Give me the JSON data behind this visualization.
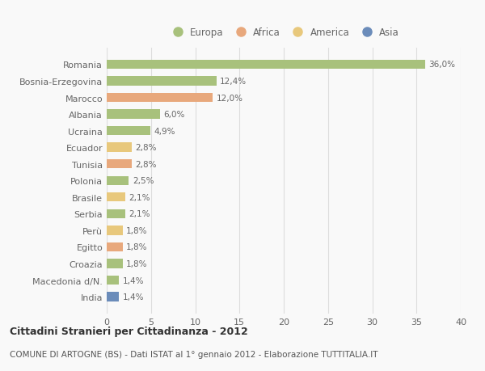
{
  "countries": [
    "Romania",
    "Bosnia-Erzegovina",
    "Marocco",
    "Albania",
    "Ucraina",
    "Ecuador",
    "Tunisia",
    "Polonia",
    "Brasile",
    "Serbia",
    "Perù",
    "Egitto",
    "Croazia",
    "Macedonia d/N.",
    "India"
  ],
  "values": [
    36.0,
    12.4,
    12.0,
    6.0,
    4.9,
    2.8,
    2.8,
    2.5,
    2.1,
    2.1,
    1.8,
    1.8,
    1.8,
    1.4,
    1.4
  ],
  "labels": [
    "36,0%",
    "12,4%",
    "12,0%",
    "6,0%",
    "4,9%",
    "2,8%",
    "2,8%",
    "2,5%",
    "2,1%",
    "2,1%",
    "1,8%",
    "1,8%",
    "1,8%",
    "1,4%",
    "1,4%"
  ],
  "continents": [
    "Europa",
    "Europa",
    "Africa",
    "Europa",
    "Europa",
    "America",
    "Africa",
    "Europa",
    "America",
    "Europa",
    "America",
    "Africa",
    "Europa",
    "Europa",
    "Asia"
  ],
  "colors": {
    "Europa": "#a8c17c",
    "Africa": "#e8a87c",
    "America": "#e8c87c",
    "Asia": "#6b8cba"
  },
  "legend_order": [
    "Europa",
    "Africa",
    "America",
    "Asia"
  ],
  "title": "Cittadini Stranieri per Cittadinanza - 2012",
  "subtitle": "COMUNE DI ARTOGNE (BS) - Dati ISTAT al 1° gennaio 2012 - Elaborazione TUTTITALIA.IT",
  "xlim": [
    0,
    40
  ],
  "xticks": [
    0,
    5,
    10,
    15,
    20,
    25,
    30,
    35,
    40
  ],
  "background_color": "#f9f9f9",
  "grid_color": "#dddddd"
}
